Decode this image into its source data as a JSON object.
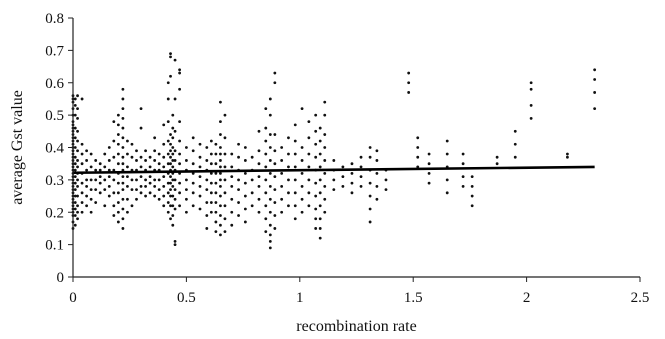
{
  "chart_data": {
    "type": "scatter",
    "title": "",
    "xlabel": "recombination rate",
    "ylabel": "average Gst value",
    "xlim": [
      0,
      2.5
    ],
    "ylim": [
      0,
      0.8
    ],
    "xticks": [
      0,
      0.5,
      1,
      1.5,
      2,
      2.5
    ],
    "yticks": [
      0,
      0.1,
      0.2,
      0.3,
      0.4,
      0.5,
      0.6,
      0.7,
      0.8
    ],
    "grid": false,
    "legend": "none",
    "trendline": {
      "x": [
        0,
        2.3
      ],
      "y": [
        0.322,
        0.34
      ]
    },
    "point_columns": [
      {
        "x": 0.0,
        "y": [
          0.15,
          0.17,
          0.19,
          0.2,
          0.21,
          0.22,
          0.23,
          0.24,
          0.25,
          0.26,
          0.27,
          0.28,
          0.29,
          0.3,
          0.31,
          0.32,
          0.33,
          0.34,
          0.35,
          0.36,
          0.37,
          0.38,
          0.39,
          0.4,
          0.41,
          0.42,
          0.43,
          0.44,
          0.45,
          0.46,
          0.47,
          0.48,
          0.5,
          0.52,
          0.54,
          0.55,
          0.56
        ]
      },
      {
        "x": 0.01,
        "y": [
          0.16,
          0.19,
          0.21,
          0.23,
          0.25,
          0.27,
          0.29,
          0.31,
          0.33,
          0.35,
          0.37,
          0.4,
          0.43,
          0.46,
          0.5,
          0.53,
          0.55
        ]
      },
      {
        "x": 0.02,
        "y": [
          0.18,
          0.2,
          0.22,
          0.25,
          0.28,
          0.3,
          0.32,
          0.34,
          0.36,
          0.39,
          0.42,
          0.45,
          0.49,
          0.52,
          0.56
        ]
      },
      {
        "x": 0.04,
        "y": [
          0.2,
          0.23,
          0.26,
          0.29,
          0.32,
          0.35,
          0.38,
          0.41,
          0.55
        ]
      },
      {
        "x": 0.06,
        "y": [
          0.22,
          0.25,
          0.28,
          0.3,
          0.33,
          0.36,
          0.39
        ]
      },
      {
        "x": 0.08,
        "y": [
          0.2,
          0.24,
          0.27,
          0.3,
          0.34,
          0.38
        ]
      },
      {
        "x": 0.1,
        "y": [
          0.23,
          0.27,
          0.3,
          0.33,
          0.36
        ]
      },
      {
        "x": 0.12,
        "y": [
          0.26,
          0.29,
          0.31,
          0.33,
          0.35
        ]
      },
      {
        "x": 0.14,
        "y": [
          0.22,
          0.27,
          0.3,
          0.34,
          0.38
        ]
      },
      {
        "x": 0.16,
        "y": [
          0.25,
          0.28,
          0.31,
          0.33,
          0.36,
          0.4
        ]
      },
      {
        "x": 0.18,
        "y": [
          0.19,
          0.22,
          0.26,
          0.3,
          0.33,
          0.37,
          0.42,
          0.48
        ]
      },
      {
        "x": 0.2,
        "y": [
          0.17,
          0.2,
          0.23,
          0.26,
          0.29,
          0.32,
          0.35,
          0.38,
          0.41,
          0.44,
          0.47,
          0.5
        ]
      },
      {
        "x": 0.22,
        "y": [
          0.15,
          0.18,
          0.21,
          0.24,
          0.27,
          0.29,
          0.31,
          0.33,
          0.35,
          0.37,
          0.4,
          0.43,
          0.46,
          0.49,
          0.52,
          0.55,
          0.58
        ]
      },
      {
        "x": 0.24,
        "y": [
          0.2,
          0.24,
          0.28,
          0.31,
          0.34,
          0.38,
          0.42
        ]
      },
      {
        "x": 0.26,
        "y": [
          0.22,
          0.27,
          0.3,
          0.33,
          0.37,
          0.41
        ]
      },
      {
        "x": 0.28,
        "y": [
          0.24,
          0.27,
          0.3,
          0.33,
          0.36,
          0.39
        ]
      },
      {
        "x": 0.3,
        "y": [
          0.26,
          0.28,
          0.31,
          0.34,
          0.37,
          0.46,
          0.52
        ]
      },
      {
        "x": 0.32,
        "y": [
          0.25,
          0.28,
          0.3,
          0.33,
          0.36,
          0.39
        ]
      },
      {
        "x": 0.34,
        "y": [
          0.26,
          0.29,
          0.31,
          0.34,
          0.37
        ]
      },
      {
        "x": 0.36,
        "y": [
          0.25,
          0.28,
          0.3,
          0.33,
          0.36,
          0.39,
          0.43
        ]
      },
      {
        "x": 0.38,
        "y": [
          0.24,
          0.27,
          0.3,
          0.33,
          0.35,
          0.38
        ]
      },
      {
        "x": 0.4,
        "y": [
          0.22,
          0.25,
          0.28,
          0.31,
          0.34,
          0.37,
          0.41,
          0.47
        ]
      },
      {
        "x": 0.42,
        "y": [
          0.2,
          0.23,
          0.26,
          0.29,
          0.32,
          0.35,
          0.38,
          0.42,
          0.48,
          0.55,
          0.6
        ]
      },
      {
        "x": 0.43,
        "y": [
          0.18,
          0.22,
          0.25,
          0.27,
          0.29,
          0.31,
          0.33,
          0.35,
          0.37,
          0.39,
          0.41,
          0.44,
          0.62,
          0.68,
          0.69
        ]
      },
      {
        "x": 0.44,
        "y": [
          0.16,
          0.19,
          0.22,
          0.25,
          0.28,
          0.3,
          0.32,
          0.34,
          0.36,
          0.38,
          0.4,
          0.43,
          0.46,
          0.5
        ]
      },
      {
        "x": 0.45,
        "y": [
          0.1,
          0.11,
          0.21,
          0.24,
          0.27,
          0.3,
          0.33,
          0.36,
          0.39,
          0.45,
          0.55,
          0.67
        ]
      },
      {
        "x": 0.47,
        "y": [
          0.22,
          0.26,
          0.29,
          0.32,
          0.35,
          0.38,
          0.42,
          0.48,
          0.58,
          0.63,
          0.64
        ]
      },
      {
        "x": 0.5,
        "y": [
          0.2,
          0.24,
          0.27,
          0.3,
          0.33,
          0.36,
          0.4
        ]
      },
      {
        "x": 0.53,
        "y": [
          0.22,
          0.26,
          0.29,
          0.32,
          0.35,
          0.39,
          0.43
        ]
      },
      {
        "x": 0.56,
        "y": [
          0.21,
          0.25,
          0.28,
          0.31,
          0.34,
          0.37,
          0.41
        ]
      },
      {
        "x": 0.59,
        "y": [
          0.15,
          0.19,
          0.23,
          0.27,
          0.3,
          0.33,
          0.36,
          0.4
        ]
      },
      {
        "x": 0.61,
        "y": [
          0.2,
          0.23,
          0.26,
          0.29,
          0.32,
          0.35,
          0.38,
          0.42
        ]
      },
      {
        "x": 0.63,
        "y": [
          0.14,
          0.17,
          0.2,
          0.23,
          0.26,
          0.29,
          0.32,
          0.35,
          0.38,
          0.41
        ]
      },
      {
        "x": 0.65,
        "y": [
          0.13,
          0.16,
          0.19,
          0.22,
          0.25,
          0.28,
          0.3,
          0.32,
          0.34,
          0.36,
          0.38,
          0.4,
          0.44,
          0.48,
          0.54
        ]
      },
      {
        "x": 0.67,
        "y": [
          0.14,
          0.18,
          0.22,
          0.26,
          0.3,
          0.34,
          0.38,
          0.43,
          0.5
        ]
      },
      {
        "x": 0.7,
        "y": [
          0.16,
          0.2,
          0.24,
          0.28,
          0.31,
          0.34,
          0.38
        ]
      },
      {
        "x": 0.73,
        "y": [
          0.19,
          0.23,
          0.27,
          0.3,
          0.33,
          0.37,
          0.41
        ]
      },
      {
        "x": 0.76,
        "y": [
          0.17,
          0.21,
          0.25,
          0.29,
          0.32,
          0.36,
          0.4
        ]
      },
      {
        "x": 0.79,
        "y": [
          0.22,
          0.26,
          0.3,
          0.33,
          0.37
        ]
      },
      {
        "x": 0.82,
        "y": [
          0.2,
          0.24,
          0.28,
          0.31,
          0.35,
          0.39,
          0.45
        ]
      },
      {
        "x": 0.85,
        "y": [
          0.14,
          0.18,
          0.22,
          0.26,
          0.3,
          0.34,
          0.38,
          0.42,
          0.46,
          0.52
        ]
      },
      {
        "x": 0.87,
        "y": [
          0.09,
          0.11,
          0.13,
          0.16,
          0.2,
          0.24,
          0.28,
          0.32,
          0.36,
          0.4,
          0.44,
          0.5,
          0.55
        ]
      },
      {
        "x": 0.89,
        "y": [
          0.15,
          0.19,
          0.23,
          0.27,
          0.31,
          0.35,
          0.39,
          0.44,
          0.6,
          0.63
        ]
      },
      {
        "x": 0.92,
        "y": [
          0.2,
          0.24,
          0.28,
          0.32,
          0.36,
          0.4
        ]
      },
      {
        "x": 0.95,
        "y": [
          0.22,
          0.26,
          0.3,
          0.34,
          0.38,
          0.43
        ]
      },
      {
        "x": 0.98,
        "y": [
          0.18,
          0.22,
          0.26,
          0.3,
          0.34,
          0.38,
          0.42,
          0.47
        ]
      },
      {
        "x": 1.01,
        "y": [
          0.2,
          0.24,
          0.28,
          0.32,
          0.36,
          0.4,
          0.52
        ]
      },
      {
        "x": 1.04,
        "y": [
          0.22,
          0.26,
          0.3,
          0.34,
          0.38,
          0.43,
          0.48
        ]
      },
      {
        "x": 1.07,
        "y": [
          0.15,
          0.18,
          0.21,
          0.25,
          0.29,
          0.33,
          0.37,
          0.41,
          0.45,
          0.5
        ]
      },
      {
        "x": 1.09,
        "y": [
          0.12,
          0.15,
          0.18,
          0.22,
          0.26,
          0.3,
          0.34,
          0.38,
          0.42,
          0.46
        ]
      },
      {
        "x": 1.11,
        "y": [
          0.2,
          0.24,
          0.28,
          0.32,
          0.36,
          0.4,
          0.44,
          0.5,
          0.54
        ]
      },
      {
        "x": 1.15,
        "y": [
          0.27,
          0.3,
          0.33,
          0.36
        ]
      },
      {
        "x": 1.19,
        "y": [
          0.28,
          0.31,
          0.34
        ]
      },
      {
        "x": 1.23,
        "y": [
          0.26,
          0.29,
          0.32,
          0.35
        ]
      },
      {
        "x": 1.27,
        "y": [
          0.28,
          0.31,
          0.34,
          0.37
        ]
      },
      {
        "x": 1.31,
        "y": [
          0.17,
          0.21,
          0.25,
          0.29,
          0.33,
          0.37,
          0.4
        ]
      },
      {
        "x": 1.34,
        "y": [
          0.24,
          0.28,
          0.32,
          0.36,
          0.39
        ]
      },
      {
        "x": 1.38,
        "y": [
          0.27,
          0.3,
          0.33
        ]
      },
      {
        "x": 1.48,
        "y": [
          0.57,
          0.6,
          0.63
        ]
      },
      {
        "x": 1.52,
        "y": [
          0.34,
          0.37,
          0.4,
          0.43
        ]
      },
      {
        "x": 1.57,
        "y": [
          0.29,
          0.32,
          0.35,
          0.38
        ]
      },
      {
        "x": 1.65,
        "y": [
          0.26,
          0.3,
          0.34,
          0.38,
          0.42
        ]
      },
      {
        "x": 1.72,
        "y": [
          0.28,
          0.31,
          0.35,
          0.38
        ]
      },
      {
        "x": 1.76,
        "y": [
          0.22,
          0.25,
          0.28,
          0.31
        ]
      },
      {
        "x": 1.87,
        "y": [
          0.35,
          0.37
        ]
      },
      {
        "x": 1.95,
        "y": [
          0.37,
          0.41,
          0.45
        ]
      },
      {
        "x": 2.02,
        "y": [
          0.49,
          0.53,
          0.58,
          0.6
        ]
      },
      {
        "x": 2.18,
        "y": [
          0.37,
          0.38
        ]
      },
      {
        "x": 2.3,
        "y": [
          0.52,
          0.57,
          0.61,
          0.64
        ]
      }
    ]
  }
}
